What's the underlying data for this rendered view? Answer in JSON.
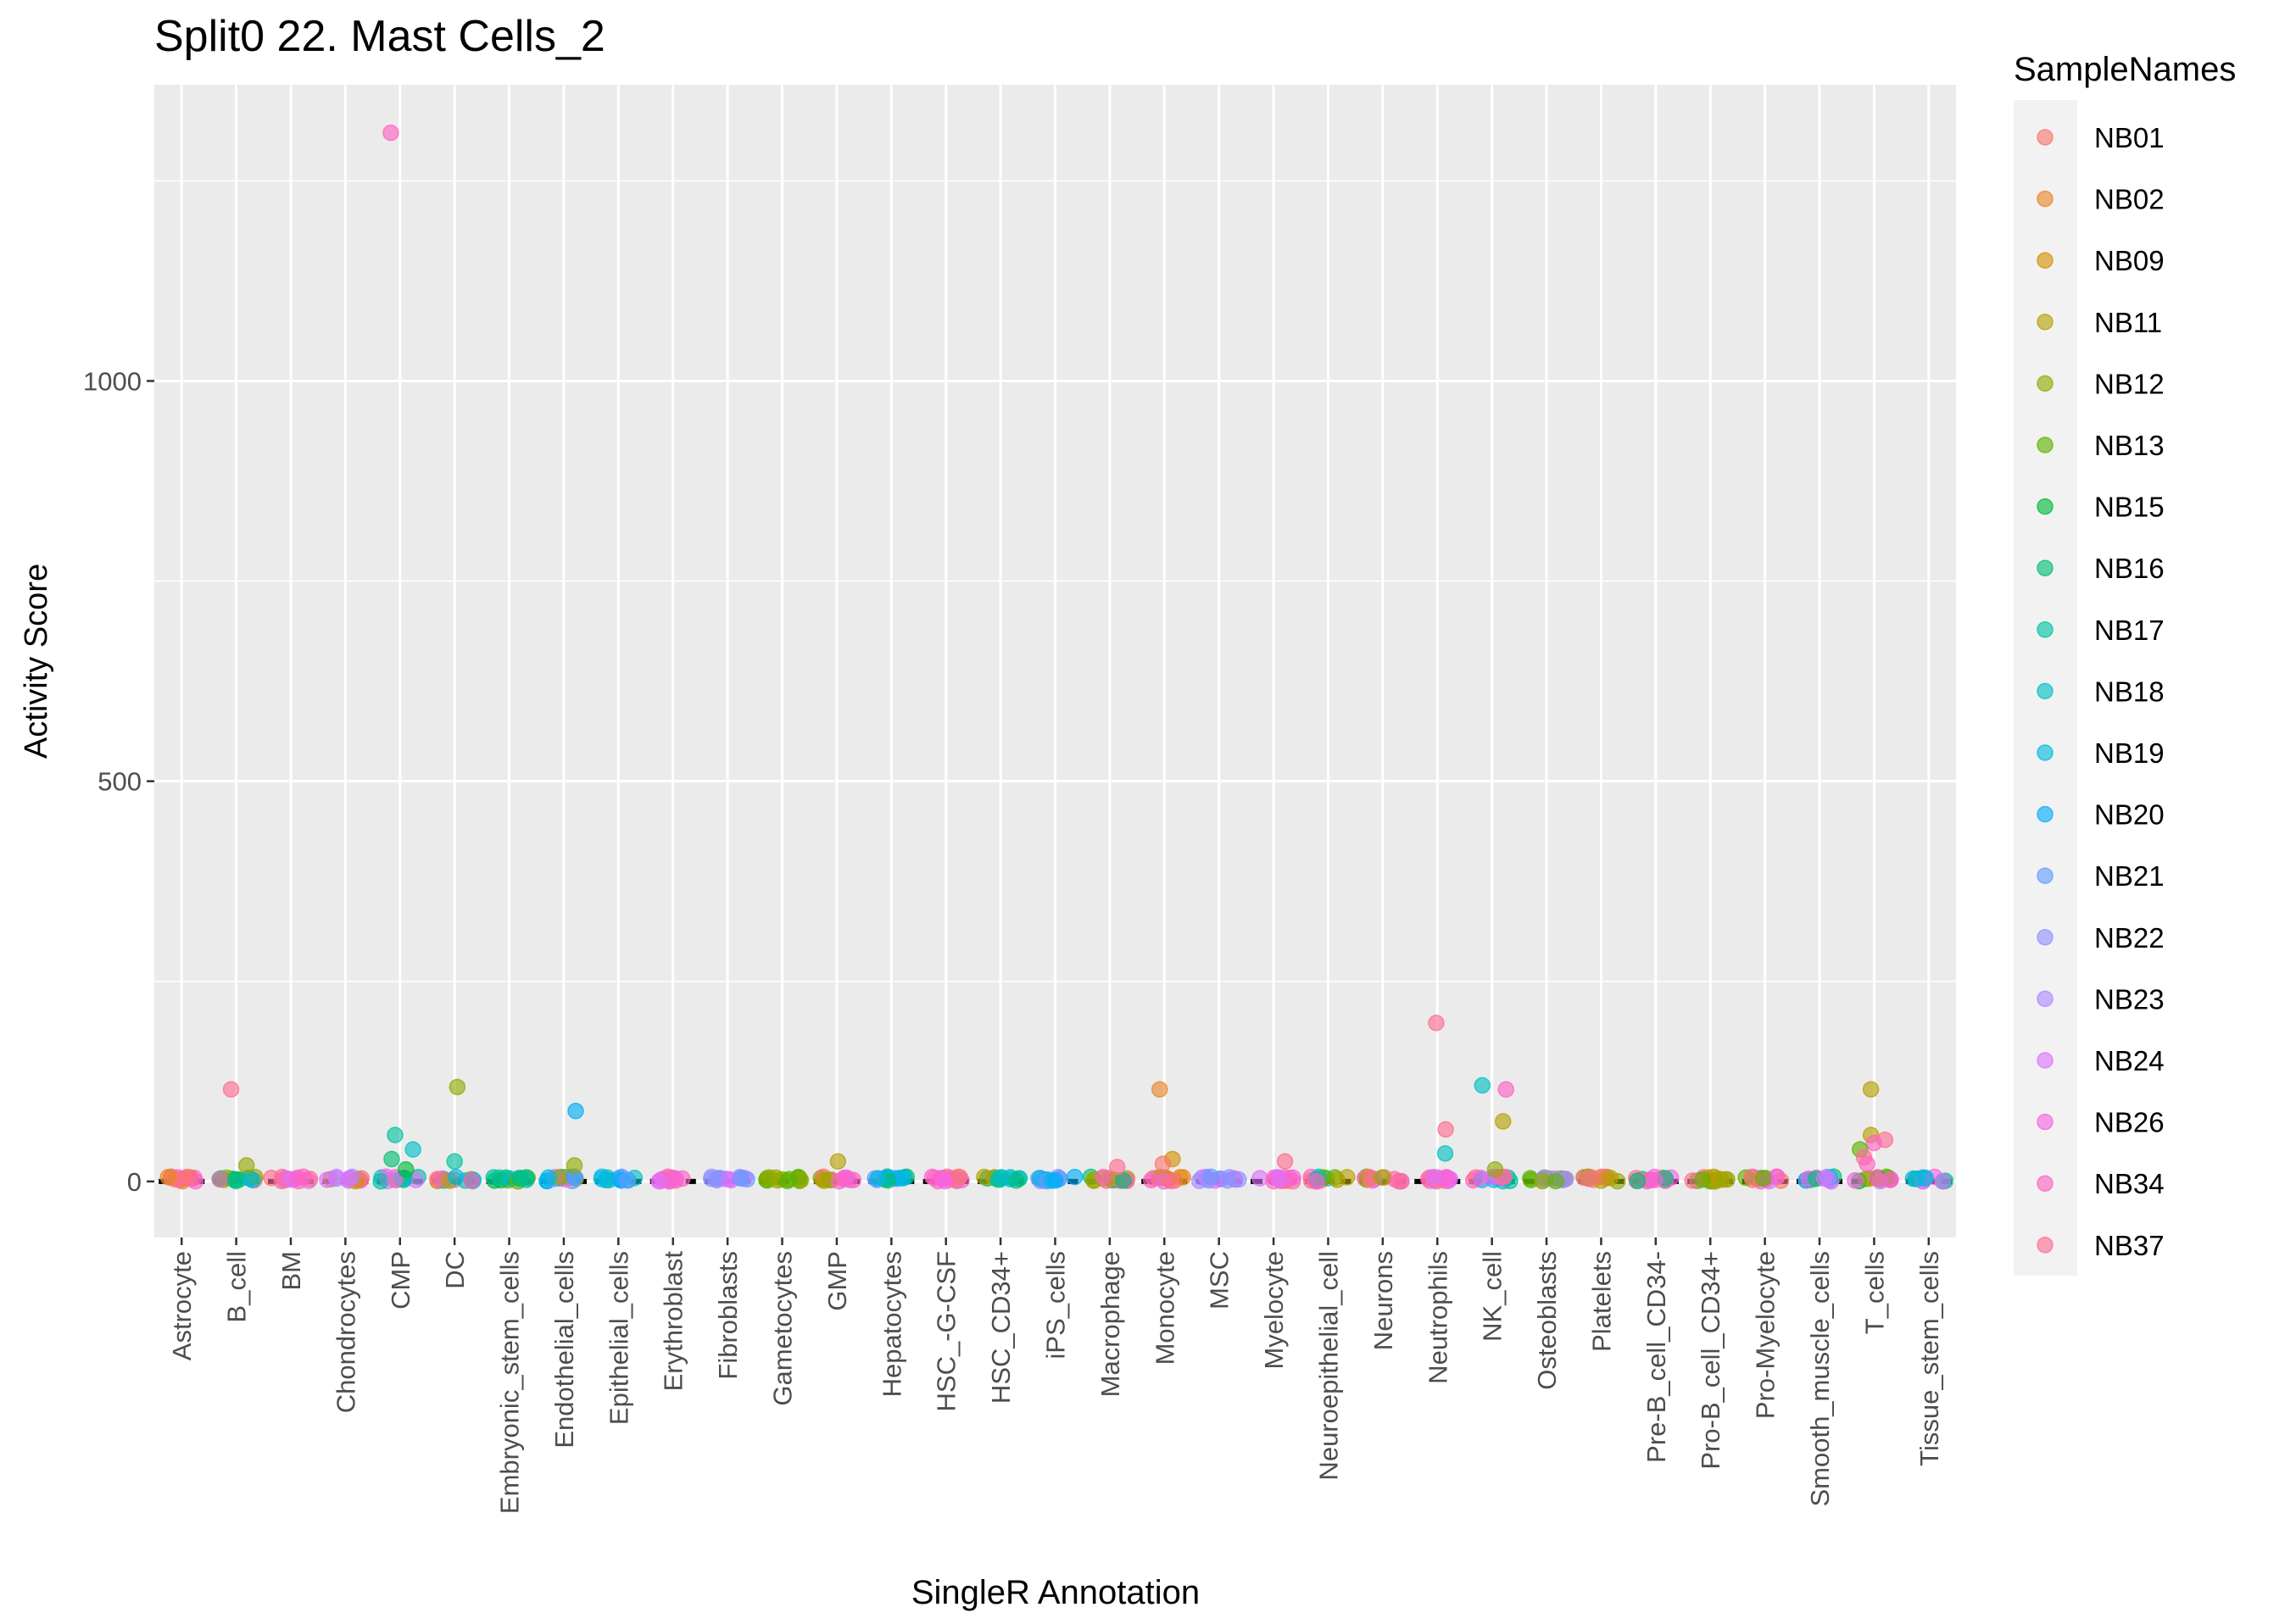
{
  "chart_data": {
    "type": "scatter",
    "title": "Split0 22. Mast Cells_2",
    "xlabel": "SingleR Annotation",
    "ylabel": "Activity Score",
    "ylim": [
      -70,
      1370
    ],
    "yticks": [
      0,
      500,
      1000
    ],
    "grid": true,
    "legend": {
      "title": "SampleNames",
      "position": "right",
      "entries": [
        {
          "name": "NB01",
          "color": "#F8766D"
        },
        {
          "name": "NB02",
          "color": "#E88526"
        },
        {
          "name": "NB09",
          "color": "#D39200"
        },
        {
          "name": "NB11",
          "color": "#B79F00"
        },
        {
          "name": "NB12",
          "color": "#93AA00"
        },
        {
          "name": "NB13",
          "color": "#5EB300"
        },
        {
          "name": "NB15",
          "color": "#00BA38"
        },
        {
          "name": "NB16",
          "color": "#00BF74"
        },
        {
          "name": "NB17",
          "color": "#00C19F"
        },
        {
          "name": "NB18",
          "color": "#00BFC4"
        },
        {
          "name": "NB19",
          "color": "#00B9E3"
        },
        {
          "name": "NB20",
          "color": "#00ADFA"
        },
        {
          "name": "NB21",
          "color": "#619CFF"
        },
        {
          "name": "NB22",
          "color": "#8F91FF"
        },
        {
          "name": "NB23",
          "color": "#AE87FF"
        },
        {
          "name": "NB24",
          "color": "#DB72FB"
        },
        {
          "name": "NB26",
          "color": "#F564E3"
        },
        {
          "name": "NB34",
          "color": "#FF61C3"
        },
        {
          "name": "NB37",
          "color": "#FF6C91"
        }
      ]
    },
    "categories": [
      "Astrocyte",
      "B_cell",
      "BM",
      "Chondrocytes",
      "CMP",
      "DC",
      "Embryonic_stem_cells",
      "Endothelial_cells",
      "Epithelial_cells",
      "Erythroblast",
      "Fibroblasts",
      "Gametocytes",
      "GMP",
      "Hepatocytes",
      "HSC_-G-CSF",
      "HSC_CD34+",
      "iPS_cells",
      "Macrophage",
      "Monocyte",
      "MSC",
      "Myelocyte",
      "Neuroepithelial_cell",
      "Neurons",
      "Neutrophils",
      "NK_cell",
      "Osteoblasts",
      "Platelets",
      "Pre-B_cell_CD34-",
      "Pro-B_cell_CD34+",
      "Pro-Myelocyte",
      "Smooth_muscle_cells",
      "T_cells",
      "Tissue_stem_cells"
    ],
    "outliers": [
      {
        "category": "B_cell",
        "sample": "NB37",
        "value": 115
      },
      {
        "category": "B_cell",
        "sample": "NB12",
        "value": 20
      },
      {
        "category": "CMP",
        "sample": "NB34",
        "value": 1310
      },
      {
        "category": "CMP",
        "sample": "NB17",
        "value": 58
      },
      {
        "category": "CMP",
        "sample": "NB18",
        "value": 40
      },
      {
        "category": "CMP",
        "sample": "NB16",
        "value": 28
      },
      {
        "category": "CMP",
        "sample": "NB15",
        "value": 15
      },
      {
        "category": "DC",
        "sample": "NB12",
        "value": 118
      },
      {
        "category": "DC",
        "sample": "NB17",
        "value": 25
      },
      {
        "category": "Endothelial_cells",
        "sample": "NB20",
        "value": 88
      },
      {
        "category": "Endothelial_cells",
        "sample": "NB12",
        "value": 20
      },
      {
        "category": "GMP",
        "sample": "NB11",
        "value": 25
      },
      {
        "category": "Macrophage",
        "sample": "NB37",
        "value": 18
      },
      {
        "category": "Monocyte",
        "sample": "NB02",
        "value": 115
      },
      {
        "category": "Monocyte",
        "sample": "NB09",
        "value": 28
      },
      {
        "category": "Monocyte",
        "sample": "NB01",
        "value": 22
      },
      {
        "category": "Myelocyte",
        "sample": "NB37",
        "value": 25
      },
      {
        "category": "Neutrophils",
        "sample": "NB37",
        "value": 198
      },
      {
        "category": "Neutrophils",
        "sample": "NB37",
        "value": 65
      },
      {
        "category": "Neutrophils",
        "sample": "NB18",
        "value": 35
      },
      {
        "category": "NK_cell",
        "sample": "NB18",
        "value": 120
      },
      {
        "category": "NK_cell",
        "sample": "NB34",
        "value": 115
      },
      {
        "category": "NK_cell",
        "sample": "NB11",
        "value": 75
      },
      {
        "category": "NK_cell",
        "sample": "NB12",
        "value": 15
      },
      {
        "category": "T_cells",
        "sample": "NB11",
        "value": 115
      },
      {
        "category": "T_cells",
        "sample": "NB11",
        "value": 58
      },
      {
        "category": "T_cells",
        "sample": "NB37",
        "value": 52
      },
      {
        "category": "T_cells",
        "sample": "NB34",
        "value": 48
      },
      {
        "category": "T_cells",
        "sample": "NB13",
        "value": 40
      },
      {
        "category": "T_cells",
        "sample": "NB37",
        "value": 30
      },
      {
        "category": "T_cells",
        "sample": "NB34",
        "value": 22
      }
    ],
    "baseline_samples": [
      [
        "NB01",
        "NB02",
        "NB34",
        "NB37"
      ],
      [
        "NB12",
        "NB15",
        "NB17",
        "NB19",
        "NB37"
      ],
      [
        "NB24",
        "NB34",
        "NB37"
      ],
      [
        "NB01",
        "NB09",
        "NB23",
        "NB24",
        "NB26"
      ],
      [
        "NB09",
        "NB17",
        "NB18",
        "NB24",
        "NB26"
      ],
      [
        "NB11",
        "NB17",
        "NB19",
        "NB34",
        "NB37"
      ],
      [
        "NB13",
        "NB15",
        "NB16",
        "NB17",
        "NB18"
      ],
      [
        "NB12",
        "NB19",
        "NB20",
        "NB21",
        "NB26"
      ],
      [
        "NB18",
        "NB19",
        "NB20",
        "NB21"
      ],
      [
        "NB24",
        "NB26",
        "NB34",
        "NB37"
      ],
      [
        "NB21",
        "NB22",
        "NB23",
        "NB24"
      ],
      [
        "NB12",
        "NB13"
      ],
      [
        "NB11",
        "NB12",
        "NB26",
        "NB34",
        "NB37"
      ],
      [
        "NB16",
        "NB19",
        "NB20",
        "NB21"
      ],
      [
        "NB01",
        "NB26",
        "NB34"
      ],
      [
        "NB11",
        "NB16",
        "NB17",
        "NB18",
        "NB19"
      ],
      [
        "NB19",
        "NB20",
        "NB21",
        "NB22"
      ],
      [
        "NB11",
        "NB12",
        "NB16",
        "NB34",
        "NB37"
      ],
      [
        "NB01",
        "NB02",
        "NB09",
        "NB11",
        "NB26",
        "NB34",
        "NB37"
      ],
      [
        "NB21",
        "NB22",
        "NB23",
        "NB24"
      ],
      [
        "NB24",
        "NB26",
        "NB34",
        "NB37"
      ],
      [
        "NB11",
        "NB13",
        "NB18",
        "NB34",
        "NB37"
      ],
      [
        "NB01",
        "NB12",
        "NB24",
        "NB26",
        "NB34",
        "NB37"
      ],
      [
        "NB24",
        "NB26",
        "NB34",
        "NB37"
      ],
      [
        "NB17",
        "NB18",
        "NB19",
        "NB24",
        "NB26",
        "NB34",
        "NB37"
      ],
      [
        "NB12",
        "NB13",
        "NB22",
        "NB23"
      ],
      [
        "NB01",
        "NB11",
        "NB12",
        "NB37"
      ],
      [
        "NB16",
        "NB26",
        "NB34",
        "NB37"
      ],
      [
        "NB09",
        "NB11",
        "NB12",
        "NB13",
        "NB37"
      ],
      [
        "NB01",
        "NB13",
        "NB24",
        "NB34"
      ],
      [
        "NB16",
        "NB19",
        "NB23",
        "NB24",
        "NB26"
      ],
      [
        "NB12",
        "NB13",
        "NB15",
        "NB24",
        "NB26",
        "NB34",
        "NB37"
      ],
      [
        "NB17",
        "NB18",
        "NB19",
        "NB24",
        "NB26"
      ]
    ]
  }
}
